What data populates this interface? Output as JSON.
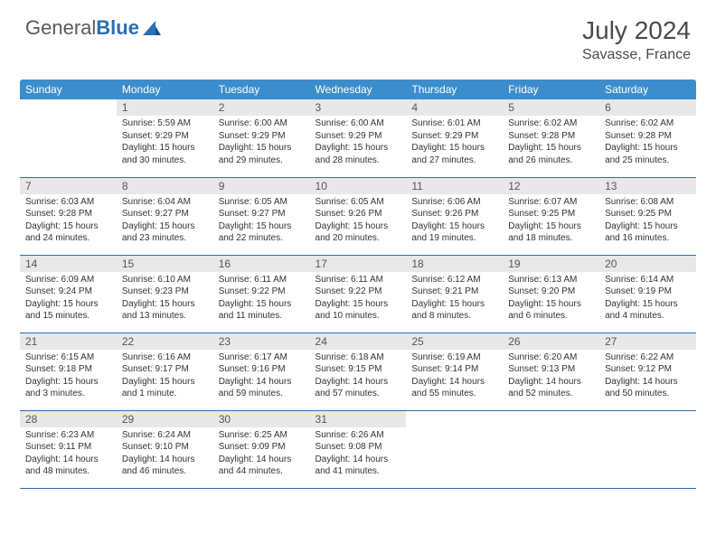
{
  "brand": {
    "part1": "General",
    "part2": "Blue"
  },
  "header": {
    "title": "July 2024",
    "location": "Savasse, France"
  },
  "colors": {
    "header_bg": "#3c8dcc",
    "header_text": "#ffffff",
    "daynum_bg": "#e8e8e8",
    "row_border": "#2a6fb5",
    "brand_accent": "#2a6fb5"
  },
  "weekdays": [
    "Sunday",
    "Monday",
    "Tuesday",
    "Wednesday",
    "Thursday",
    "Friday",
    "Saturday"
  ],
  "weeks": [
    [
      {
        "n": "",
        "sr": "",
        "ss": "",
        "dl": ""
      },
      {
        "n": "1",
        "sr": "Sunrise: 5:59 AM",
        "ss": "Sunset: 9:29 PM",
        "dl": "Daylight: 15 hours and 30 minutes."
      },
      {
        "n": "2",
        "sr": "Sunrise: 6:00 AM",
        "ss": "Sunset: 9:29 PM",
        "dl": "Daylight: 15 hours and 29 minutes."
      },
      {
        "n": "3",
        "sr": "Sunrise: 6:00 AM",
        "ss": "Sunset: 9:29 PM",
        "dl": "Daylight: 15 hours and 28 minutes."
      },
      {
        "n": "4",
        "sr": "Sunrise: 6:01 AM",
        "ss": "Sunset: 9:29 PM",
        "dl": "Daylight: 15 hours and 27 minutes."
      },
      {
        "n": "5",
        "sr": "Sunrise: 6:02 AM",
        "ss": "Sunset: 9:28 PM",
        "dl": "Daylight: 15 hours and 26 minutes."
      },
      {
        "n": "6",
        "sr": "Sunrise: 6:02 AM",
        "ss": "Sunset: 9:28 PM",
        "dl": "Daylight: 15 hours and 25 minutes."
      }
    ],
    [
      {
        "n": "7",
        "sr": "Sunrise: 6:03 AM",
        "ss": "Sunset: 9:28 PM",
        "dl": "Daylight: 15 hours and 24 minutes."
      },
      {
        "n": "8",
        "sr": "Sunrise: 6:04 AM",
        "ss": "Sunset: 9:27 PM",
        "dl": "Daylight: 15 hours and 23 minutes."
      },
      {
        "n": "9",
        "sr": "Sunrise: 6:05 AM",
        "ss": "Sunset: 9:27 PM",
        "dl": "Daylight: 15 hours and 22 minutes."
      },
      {
        "n": "10",
        "sr": "Sunrise: 6:05 AM",
        "ss": "Sunset: 9:26 PM",
        "dl": "Daylight: 15 hours and 20 minutes."
      },
      {
        "n": "11",
        "sr": "Sunrise: 6:06 AM",
        "ss": "Sunset: 9:26 PM",
        "dl": "Daylight: 15 hours and 19 minutes."
      },
      {
        "n": "12",
        "sr": "Sunrise: 6:07 AM",
        "ss": "Sunset: 9:25 PM",
        "dl": "Daylight: 15 hours and 18 minutes."
      },
      {
        "n": "13",
        "sr": "Sunrise: 6:08 AM",
        "ss": "Sunset: 9:25 PM",
        "dl": "Daylight: 15 hours and 16 minutes."
      }
    ],
    [
      {
        "n": "14",
        "sr": "Sunrise: 6:09 AM",
        "ss": "Sunset: 9:24 PM",
        "dl": "Daylight: 15 hours and 15 minutes."
      },
      {
        "n": "15",
        "sr": "Sunrise: 6:10 AM",
        "ss": "Sunset: 9:23 PM",
        "dl": "Daylight: 15 hours and 13 minutes."
      },
      {
        "n": "16",
        "sr": "Sunrise: 6:11 AM",
        "ss": "Sunset: 9:22 PM",
        "dl": "Daylight: 15 hours and 11 minutes."
      },
      {
        "n": "17",
        "sr": "Sunrise: 6:11 AM",
        "ss": "Sunset: 9:22 PM",
        "dl": "Daylight: 15 hours and 10 minutes."
      },
      {
        "n": "18",
        "sr": "Sunrise: 6:12 AM",
        "ss": "Sunset: 9:21 PM",
        "dl": "Daylight: 15 hours and 8 minutes."
      },
      {
        "n": "19",
        "sr": "Sunrise: 6:13 AM",
        "ss": "Sunset: 9:20 PM",
        "dl": "Daylight: 15 hours and 6 minutes."
      },
      {
        "n": "20",
        "sr": "Sunrise: 6:14 AM",
        "ss": "Sunset: 9:19 PM",
        "dl": "Daylight: 15 hours and 4 minutes."
      }
    ],
    [
      {
        "n": "21",
        "sr": "Sunrise: 6:15 AM",
        "ss": "Sunset: 9:18 PM",
        "dl": "Daylight: 15 hours and 3 minutes."
      },
      {
        "n": "22",
        "sr": "Sunrise: 6:16 AM",
        "ss": "Sunset: 9:17 PM",
        "dl": "Daylight: 15 hours and 1 minute."
      },
      {
        "n": "23",
        "sr": "Sunrise: 6:17 AM",
        "ss": "Sunset: 9:16 PM",
        "dl": "Daylight: 14 hours and 59 minutes."
      },
      {
        "n": "24",
        "sr": "Sunrise: 6:18 AM",
        "ss": "Sunset: 9:15 PM",
        "dl": "Daylight: 14 hours and 57 minutes."
      },
      {
        "n": "25",
        "sr": "Sunrise: 6:19 AM",
        "ss": "Sunset: 9:14 PM",
        "dl": "Daylight: 14 hours and 55 minutes."
      },
      {
        "n": "26",
        "sr": "Sunrise: 6:20 AM",
        "ss": "Sunset: 9:13 PM",
        "dl": "Daylight: 14 hours and 52 minutes."
      },
      {
        "n": "27",
        "sr": "Sunrise: 6:22 AM",
        "ss": "Sunset: 9:12 PM",
        "dl": "Daylight: 14 hours and 50 minutes."
      }
    ],
    [
      {
        "n": "28",
        "sr": "Sunrise: 6:23 AM",
        "ss": "Sunset: 9:11 PM",
        "dl": "Daylight: 14 hours and 48 minutes."
      },
      {
        "n": "29",
        "sr": "Sunrise: 6:24 AM",
        "ss": "Sunset: 9:10 PM",
        "dl": "Daylight: 14 hours and 46 minutes."
      },
      {
        "n": "30",
        "sr": "Sunrise: 6:25 AM",
        "ss": "Sunset: 9:09 PM",
        "dl": "Daylight: 14 hours and 44 minutes."
      },
      {
        "n": "31",
        "sr": "Sunrise: 6:26 AM",
        "ss": "Sunset: 9:08 PM",
        "dl": "Daylight: 14 hours and 41 minutes."
      },
      {
        "n": "",
        "sr": "",
        "ss": "",
        "dl": ""
      },
      {
        "n": "",
        "sr": "",
        "ss": "",
        "dl": ""
      },
      {
        "n": "",
        "sr": "",
        "ss": "",
        "dl": ""
      }
    ]
  ]
}
